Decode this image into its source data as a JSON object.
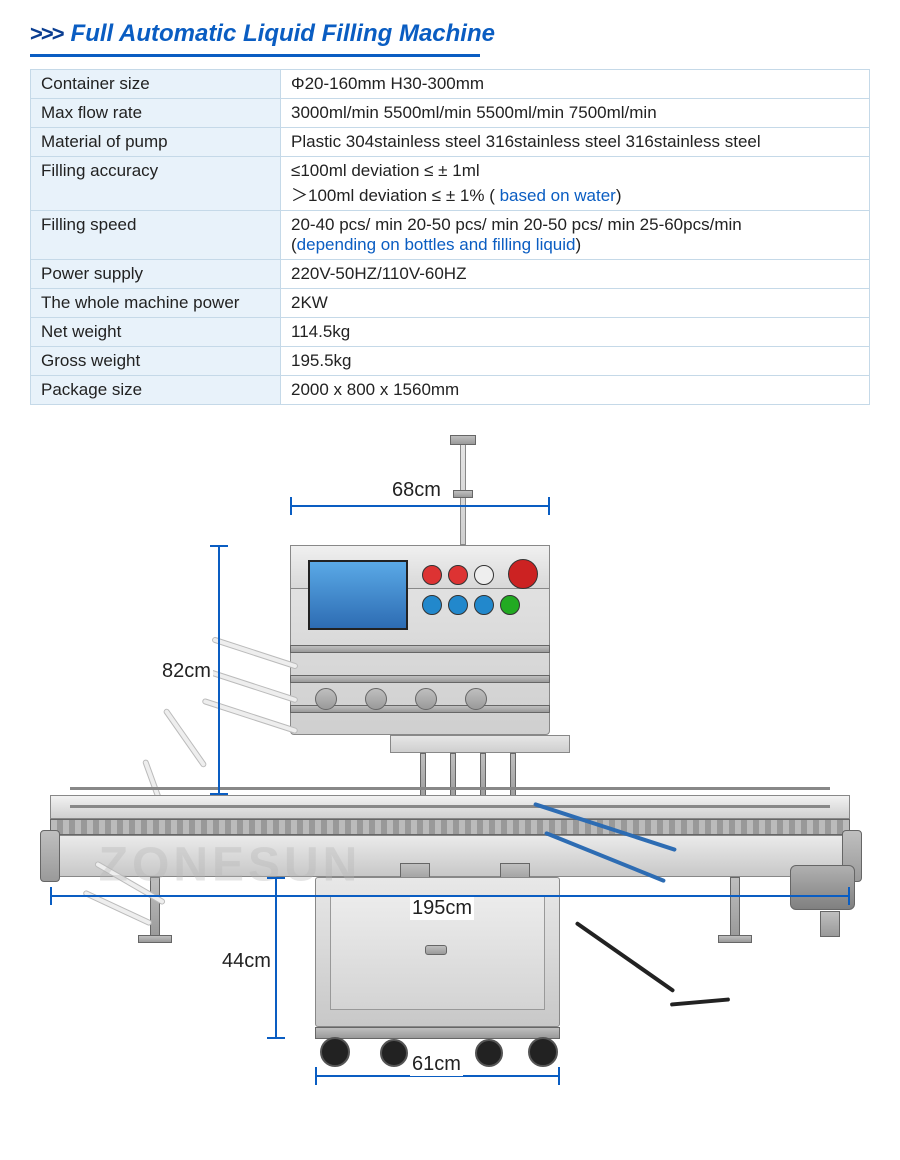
{
  "header": {
    "chevrons": ">>>",
    "title": "Full Automatic Liquid Filling Machine"
  },
  "spec_table": {
    "rows": [
      {
        "label": "Container size",
        "value": "Φ20-160mm H30-300mm"
      },
      {
        "label": "Max flow rate",
        "value": "3000ml/min   5500ml/min    5500ml/min        7500ml/min"
      },
      {
        "label": "Material of pump",
        "value": "Plastic   304stainless steel  316stainless steel   316stainless steel"
      },
      {
        "label": "Filling accuracy",
        "value_lines": [
          {
            "text": "≤100ml deviation ≤ ± 1ml"
          },
          {
            "text": "＞100ml deviation ≤ ± 1% (",
            "suffix_blue": " based on water",
            "suffix_after": ")"
          }
        ]
      },
      {
        "label": "Filling speed",
        "value_lines": [
          {
            "text": "20-40 pcs/ min  20-50 pcs/ min  20-50 pcs/ min  25-60pcs/min"
          },
          {
            "text": "(",
            "suffix_blue": "depending on bottles and filling liquid",
            "suffix_after": ")"
          }
        ]
      },
      {
        "label": "Power supply",
        "value": "220V-50HZ/110V-60HZ"
      },
      {
        "label": "The whole machine power",
        "value": "2KW"
      },
      {
        "label": "Net weight",
        "value": "114.5kg"
      },
      {
        "label": "Gross weight",
        "value": "195.5kg"
      },
      {
        "label": "Package size",
        "value": "2000 x 800 x 1560mm"
      }
    ]
  },
  "dimensions": {
    "top_width": "68cm",
    "left_height": "82cm",
    "conveyor_width": "195cm",
    "base_height": "44cm",
    "base_width": "61cm"
  },
  "watermark": "ZONESUN",
  "colors": {
    "title": "#0a5dc2",
    "chevrons": "#0a3d91",
    "table_border": "#c5d9e8",
    "table_label_bg": "#e8f2fa",
    "dim_line": "#0a5dc2"
  }
}
